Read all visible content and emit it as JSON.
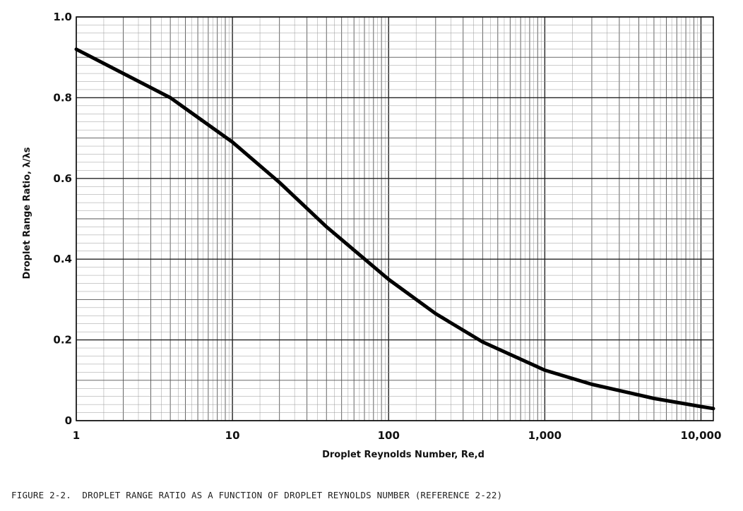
{
  "caption": "FIGURE 2-2.  DROPLET RANGE RATIO AS A FUNCTION OF DROPLET REYNOLDS NUMBER (REFERENCE 2-22)",
  "chart_data": {
    "type": "line",
    "title": "",
    "xlabel": "Droplet Reynolds Number, Re,d",
    "ylabel": "Droplet Range Ratio, λ/λs",
    "x_scale": "log",
    "xlim": [
      1,
      12000
    ],
    "ylim": [
      0,
      1.0
    ],
    "grid": true,
    "x_ticks": [
      {
        "value": 1,
        "label": "1"
      },
      {
        "value": 10,
        "label": "10"
      },
      {
        "value": 100,
        "label": "100"
      },
      {
        "value": 1000,
        "label": "1,000"
      },
      {
        "value": 10000,
        "label": "10,000"
      }
    ],
    "y_ticks": [
      {
        "value": 0,
        "label": "0"
      },
      {
        "value": 0.2,
        "label": "0.2"
      },
      {
        "value": 0.4,
        "label": "0.4"
      },
      {
        "value": 0.6,
        "label": "0.6"
      },
      {
        "value": 0.8,
        "label": "0.8"
      },
      {
        "value": 1.0,
        "label": "1.0"
      }
    ],
    "series": [
      {
        "x": [
          1,
          2,
          4,
          10,
          20,
          40,
          100,
          200,
          400,
          1000,
          2000,
          5000,
          10000,
          12000
        ],
        "y": [
          0.92,
          0.86,
          0.8,
          0.69,
          0.59,
          0.48,
          0.35,
          0.265,
          0.195,
          0.125,
          0.09,
          0.055,
          0.035,
          0.03
        ]
      }
    ]
  }
}
